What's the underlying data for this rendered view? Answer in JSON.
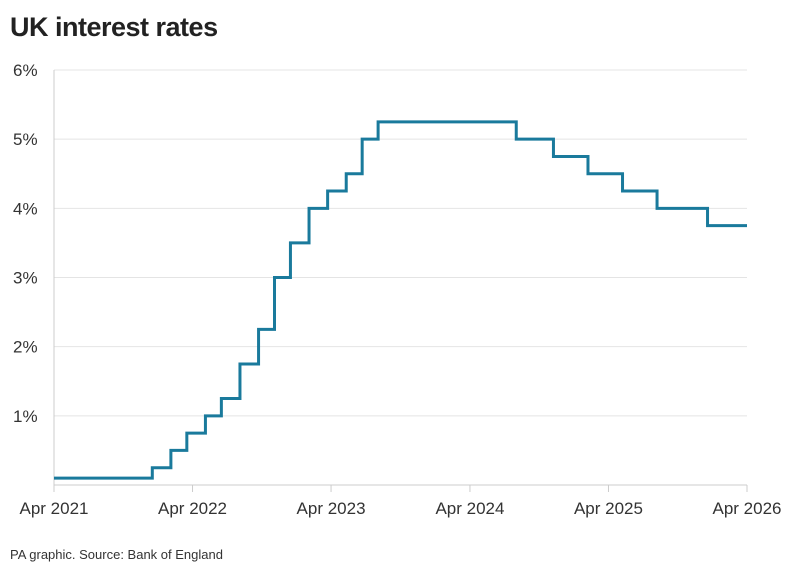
{
  "title": "UK interest rates",
  "source": "PA graphic. Source: Bank of England",
  "chart_data": {
    "type": "line",
    "title": "UK interest rates",
    "xlabel": "",
    "ylabel": "",
    "step": true,
    "line_color": "#1a7a9c",
    "grid": true,
    "ylim": [
      0,
      6
    ],
    "xlim": [
      "2021-04-01",
      "2026-04-01"
    ],
    "y_ticks": [
      1,
      2,
      3,
      4,
      5,
      6
    ],
    "y_tick_labels": [
      "1%",
      "2%",
      "3%",
      "4%",
      "5%",
      "6%"
    ],
    "x_ticks": [
      "2021-04-01",
      "2022-04-01",
      "2023-04-01",
      "2024-04-01",
      "2025-04-01",
      "2026-04-01"
    ],
    "x_tick_labels": [
      "Apr 2021",
      "Apr 2022",
      "Apr 2023",
      "Apr 2024",
      "Apr 2025",
      "Apr 2026"
    ],
    "series": [
      {
        "points": [
          {
            "date": "2021-04-01",
            "rate": 0.1
          },
          {
            "date": "2021-12-16",
            "rate": 0.25
          },
          {
            "date": "2022-02-03",
            "rate": 0.5
          },
          {
            "date": "2022-03-17",
            "rate": 0.75
          },
          {
            "date": "2022-05-05",
            "rate": 1.0
          },
          {
            "date": "2022-06-16",
            "rate": 1.25
          },
          {
            "date": "2022-08-04",
            "rate": 1.75
          },
          {
            "date": "2022-09-22",
            "rate": 2.25
          },
          {
            "date": "2022-11-03",
            "rate": 3.0
          },
          {
            "date": "2022-12-15",
            "rate": 3.5
          },
          {
            "date": "2023-02-02",
            "rate": 4.0
          },
          {
            "date": "2023-03-23",
            "rate": 4.25
          },
          {
            "date": "2023-05-11",
            "rate": 4.5
          },
          {
            "date": "2023-06-22",
            "rate": 5.0
          },
          {
            "date": "2023-08-03",
            "rate": 5.25
          },
          {
            "date": "2024-08-01",
            "rate": 5.0
          },
          {
            "date": "2024-11-07",
            "rate": 4.75
          },
          {
            "date": "2025-02-06",
            "rate": 4.5
          },
          {
            "date": "2025-05-08",
            "rate": 4.25
          },
          {
            "date": "2025-08-07",
            "rate": 4.0
          },
          {
            "date": "2025-12-18",
            "rate": 3.75
          },
          {
            "date": "2026-04-01",
            "rate": 3.75
          }
        ]
      }
    ]
  }
}
